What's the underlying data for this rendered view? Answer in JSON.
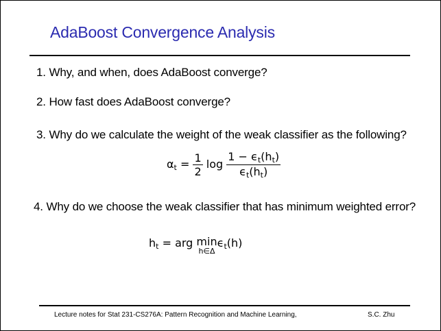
{
  "slide": {
    "title": "AdaBoost Convergence Analysis",
    "title_color": "#2b2bb0",
    "questions": [
      "1. Why, and when, does AdaBoost converge?",
      "2.  How fast does AdaBoost converge?",
      "3.  Why do we calculate the weight of the weak classifier as the following?",
      "4. Why do we choose the weak classifier that has minimum weighted error?"
    ],
    "formula_alpha": {
      "lhs": "α",
      "lhs_sub": "t",
      "eq": "=",
      "half_num": "1",
      "half_den": "2",
      "log": "log",
      "frac_num": "1 − ϵ",
      "frac_num_sub": "t",
      "frac_num_arg": "(h",
      "frac_num_arg_sub": "t",
      "frac_num_close": ")",
      "frac_den": "ϵ",
      "frac_den_sub": "t",
      "frac_den_arg": "(h",
      "frac_den_arg_sub": "t",
      "frac_den_close": ")"
    },
    "formula_h": {
      "lhs": "h",
      "lhs_sub": "t",
      "eq": "=",
      "argmin_prefix": "arg",
      "min": "min",
      "min_under": "h∈Δ",
      "eps": "ϵ",
      "eps_sub": "t",
      "eps_arg": "(h)"
    },
    "footer_left": "Lecture notes for Stat 231-CS276A: Pattern Recognition and Machine Learning,",
    "footer_right": "S.C. Zhu"
  }
}
